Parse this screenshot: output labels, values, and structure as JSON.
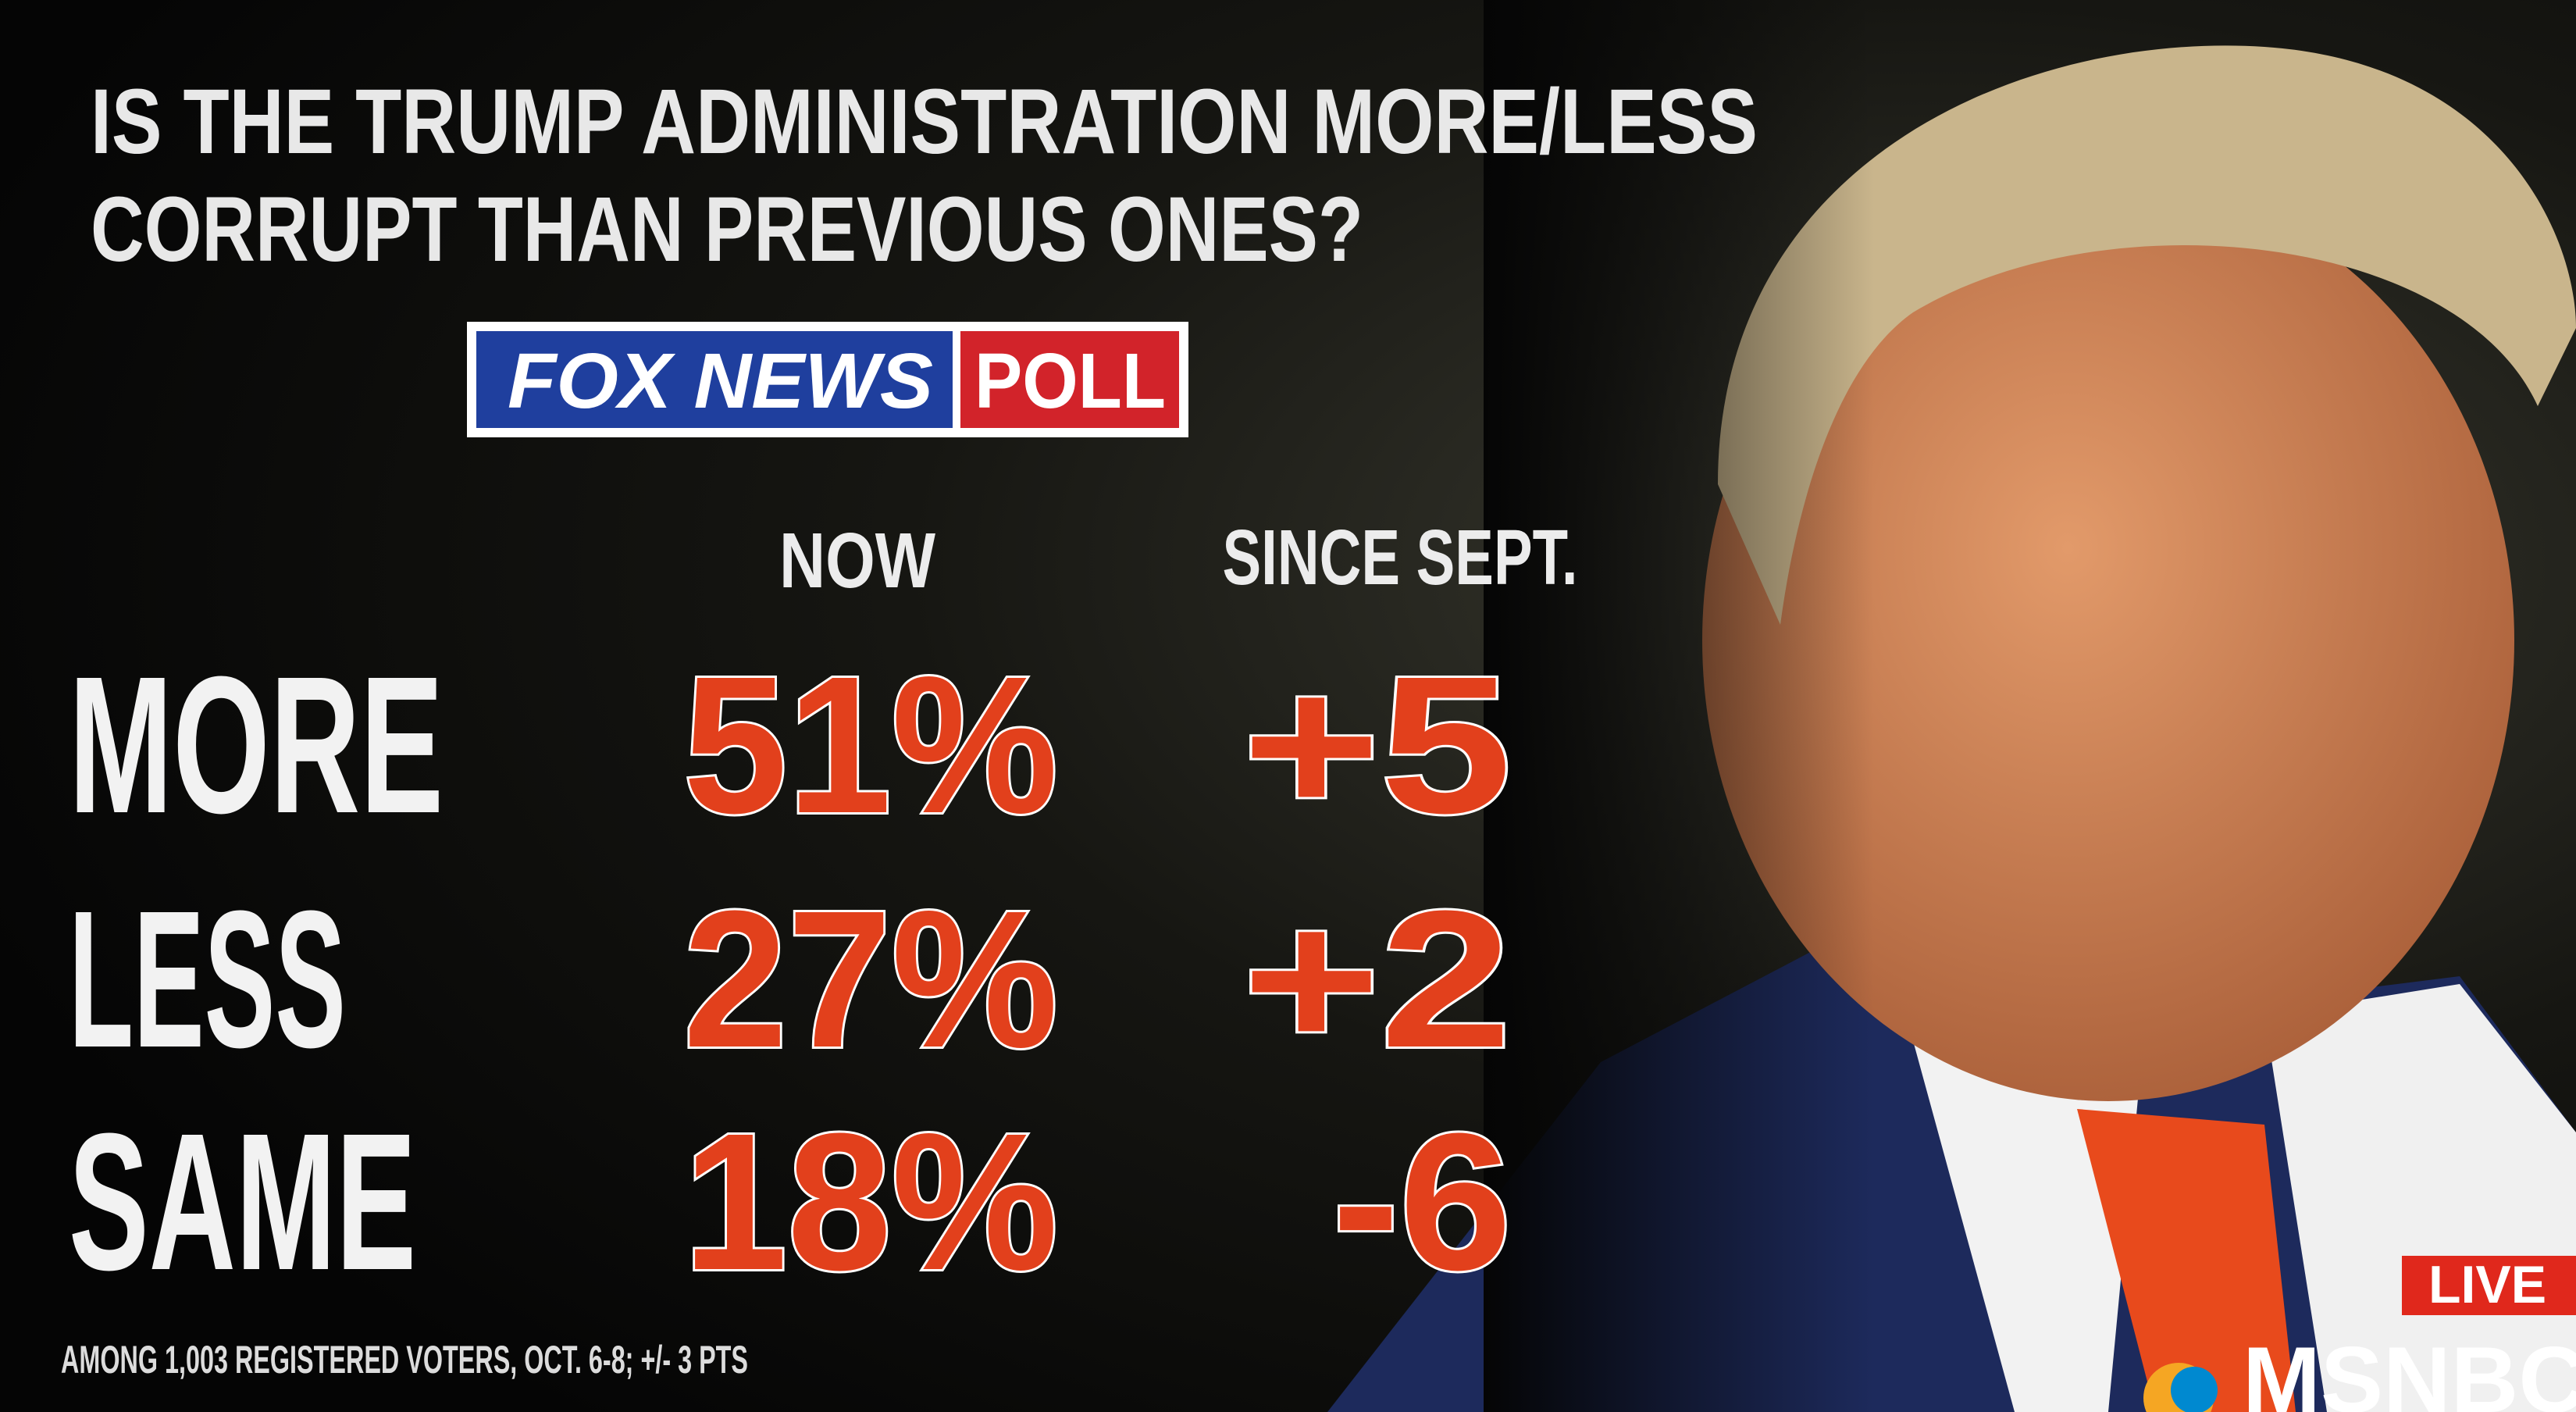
{
  "title_lines": [
    "IS THE TRUMP ADMINISTRATION MORE/LESS",
    "CORRUPT THAN PREVIOUS ONES?"
  ],
  "logo": {
    "brand": "FOX NEWS",
    "label": "POLL"
  },
  "table": {
    "columns": [
      "NOW",
      "SINCE SEPT."
    ],
    "rows": [
      [
        "MORE",
        "51%",
        "+5"
      ],
      [
        "LESS",
        "27%",
        "+2"
      ],
      [
        "SAME",
        "18%",
        "-6"
      ]
    ]
  },
  "footnote": "AMONG 1,003 REGISTERED VOTERS, OCT. 6-8; +/- 3 PTS",
  "network": {
    "live": "LIVE",
    "name": "MSNBC"
  }
}
